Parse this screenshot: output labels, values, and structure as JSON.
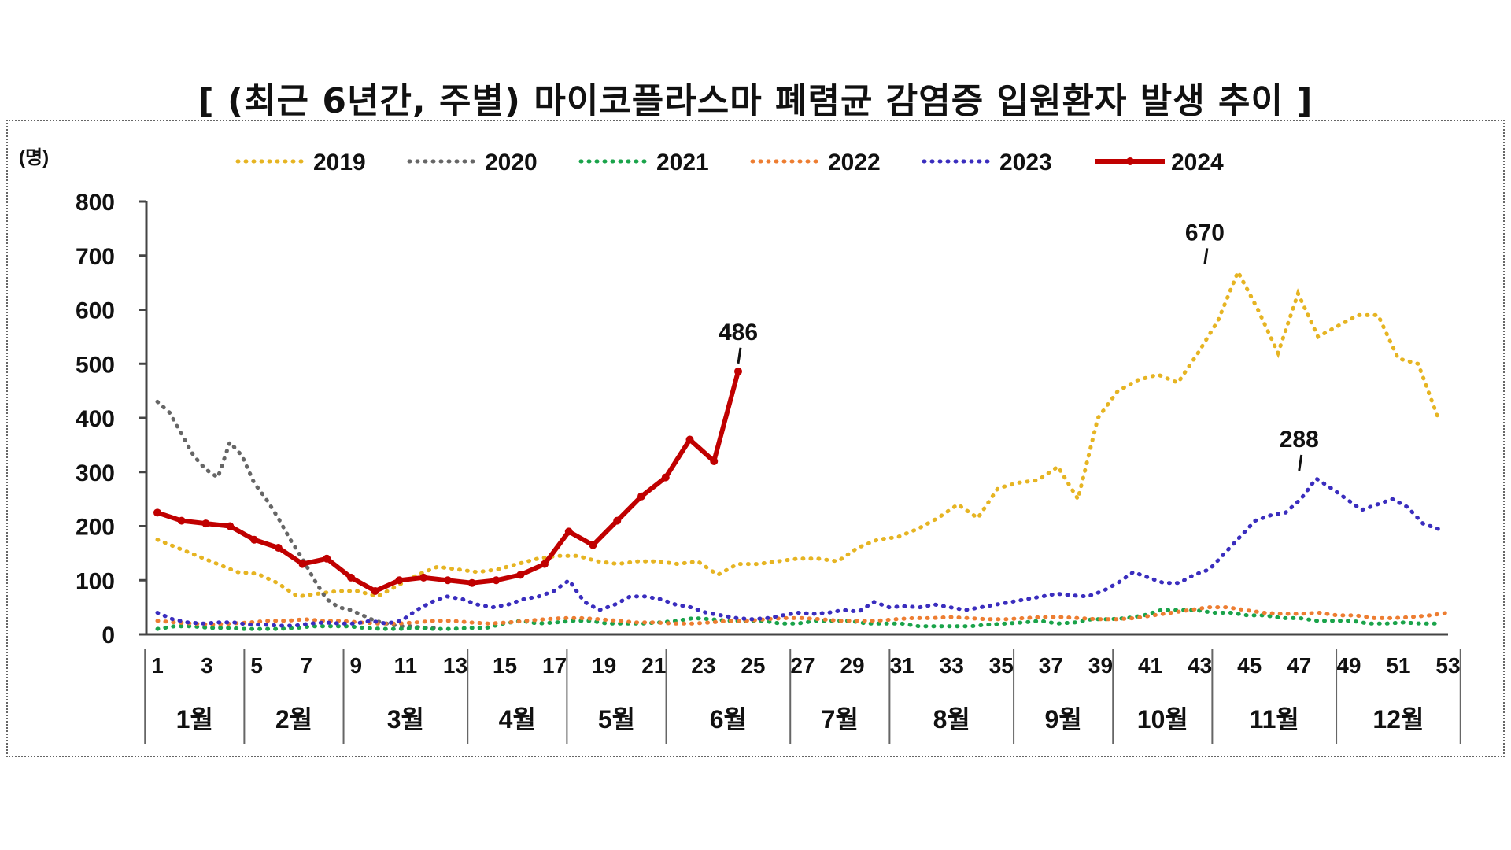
{
  "chart_data": {
    "type": "line",
    "title": "[ (최근 6년간, 주별) 마이코플라스마 폐렴균 감염증 입원환자 발생 추이 ]",
    "ylabel": "(명)",
    "xlabel": "",
    "ylim": [
      0,
      800
    ],
    "yticks": [
      "0",
      "100",
      "200",
      "300",
      "400",
      "500",
      "600",
      "700",
      "800"
    ],
    "xlim": [
      1,
      53
    ],
    "xticks": [
      "1",
      "3",
      "5",
      "7",
      "9",
      "11",
      "13",
      "15",
      "17",
      "19",
      "21",
      "23",
      "25",
      "27",
      "29",
      "31",
      "33",
      "35",
      "37",
      "39",
      "41",
      "43",
      "45",
      "47",
      "49",
      "51",
      "53"
    ],
    "months": [
      {
        "label": "1월",
        "from": 1,
        "to": 4
      },
      {
        "label": "2월",
        "from": 5,
        "to": 8
      },
      {
        "label": "3월",
        "from": 9,
        "to": 13
      },
      {
        "label": "4월",
        "from": 14,
        "to": 17
      },
      {
        "label": "5월",
        "from": 18,
        "to": 21
      },
      {
        "label": "6월",
        "from": 22,
        "to": 26
      },
      {
        "label": "7월",
        "from": 27,
        "to": 30
      },
      {
        "label": "8월",
        "from": 31,
        "to": 35
      },
      {
        "label": "9월",
        "from": 36,
        "to": 39
      },
      {
        "label": "10월",
        "from": 40,
        "to": 43
      },
      {
        "label": "11월",
        "from": 44,
        "to": 48
      },
      {
        "label": "12월",
        "from": 49,
        "to": 53
      }
    ],
    "legend_position": "top",
    "grid": false,
    "series": [
      {
        "name": "2019",
        "color": "#E6B422",
        "style": "dotted",
        "values": [
          175,
          160,
          145,
          130,
          115,
          112,
          95,
          70,
          75,
          80,
          80,
          70,
          90,
          110,
          125,
          120,
          115,
          120,
          130,
          140,
          145,
          145,
          135,
          130,
          135,
          135,
          130,
          135,
          110,
          130,
          130,
          135,
          140,
          140,
          135,
          160,
          175,
          180,
          195,
          215,
          240,
          215,
          270,
          280,
          285,
          310,
          250,
          400,
          450,
          470,
          480,
          465,
          520,
          580,
          670,
          600,
          520,
          630,
          550,
          570,
          590,
          590,
          510,
          500,
          400
        ]
      },
      {
        "name": "2020",
        "color": "#666666",
        "style": "dotted",
        "values": [
          430,
          410,
          370,
          330,
          305,
          290,
          355,
          330,
          280,
          250,
          215,
          175,
          140,
          100,
          65,
          50,
          45,
          35,
          25,
          20,
          15,
          15,
          12,
          12
        ]
      },
      {
        "name": "2021",
        "color": "#1AA34A",
        "style": "dotted",
        "values": [
          10,
          15,
          15,
          12,
          12,
          10,
          10,
          10,
          12,
          15,
          15,
          15,
          12,
          10,
          10,
          12,
          10,
          10,
          12,
          12,
          20,
          25,
          20,
          22,
          25,
          25,
          20,
          20,
          20,
          22,
          25,
          30,
          28,
          25,
          25,
          25,
          20,
          20,
          25,
          25,
          25,
          20,
          20,
          20,
          15,
          15,
          15,
          15,
          18,
          20,
          22,
          25,
          20,
          22,
          28,
          28,
          30,
          35,
          45,
          45,
          45,
          40,
          40,
          35,
          35,
          30,
          30,
          25,
          25,
          25,
          20,
          20,
          22,
          20,
          20
        ]
      },
      {
        "name": "2022",
        "color": "#ED7D31",
        "style": "dotted",
        "values": [
          25,
          22,
          20,
          18,
          20,
          22,
          25,
          25,
          28,
          25,
          25,
          22,
          20,
          20,
          22,
          25,
          25,
          22,
          20,
          22,
          25,
          28,
          30,
          30,
          28,
          25,
          22,
          22,
          20,
          20,
          22,
          25,
          25,
          28,
          30,
          30,
          28,
          25,
          25,
          25,
          28,
          30,
          30,
          32,
          30,
          28,
          28,
          30,
          32,
          32,
          30,
          28,
          28,
          30,
          35,
          40,
          45,
          50,
          50,
          45,
          40,
          38,
          38,
          40,
          35,
          35,
          30,
          30,
          32,
          35,
          40
        ]
      },
      {
        "name": "2023",
        "color": "#3A2DBE",
        "style": "dotted",
        "values": [
          40,
          28,
          22,
          20,
          22,
          22,
          18,
          18,
          16,
          16,
          20,
          22,
          20,
          20,
          25,
          20,
          25,
          45,
          60,
          70,
          65,
          55,
          50,
          55,
          65,
          70,
          80,
          100,
          60,
          45,
          55,
          70,
          70,
          65,
          55,
          50,
          40,
          35,
          30,
          28,
          30,
          35,
          40,
          38,
          40,
          45,
          42,
          60,
          50,
          52,
          50,
          55,
          50,
          45,
          50,
          55,
          60,
          65,
          70,
          75,
          72,
          70,
          80,
          95,
          115,
          105,
          95,
          95,
          110,
          120,
          150,
          180,
          210,
          220,
          225,
          250,
          288,
          270,
          250,
          230,
          240,
          250,
          235,
          205,
          195
        ]
      },
      {
        "name": "2024",
        "color": "#C00000",
        "style": "solid",
        "values": [
          225,
          210,
          205,
          200,
          175,
          160,
          130,
          140,
          105,
          80,
          100,
          105,
          100,
          95,
          100,
          110,
          130,
          190,
          165,
          210,
          255,
          290,
          360,
          320,
          486
        ]
      }
    ],
    "annotations": [
      {
        "series": "2019",
        "text": "670",
        "x": 43.2,
        "y": 670
      },
      {
        "series": "2023",
        "text": "288",
        "x": 47.0,
        "y": 288
      },
      {
        "series": "2024",
        "text": "486",
        "x": 24.4,
        "y": 486
      }
    ]
  }
}
